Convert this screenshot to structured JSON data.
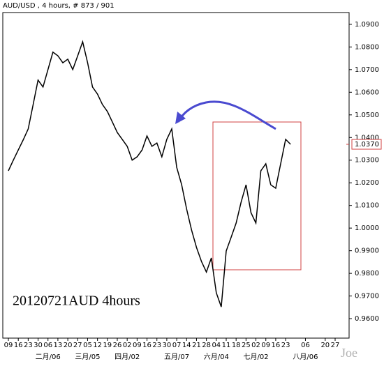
{
  "chart_data": {
    "type": "line",
    "title": "AUD/USD , 4 hours, # 873 / 901",
    "annotation": "20120721AUD 4hours",
    "watermark": "Joe",
    "color": "#000000",
    "categories": [
      "09",
      null,
      "16",
      null,
      "23",
      null,
      "30",
      null,
      "06",
      null,
      "13",
      null,
      "20",
      null,
      "27",
      null,
      "05",
      null,
      "12",
      null,
      "19",
      null,
      "26",
      null,
      "02",
      null,
      "09",
      null,
      "16",
      null,
      "23",
      null,
      "30",
      null,
      "07",
      null,
      "14",
      null,
      "21",
      null,
      "28",
      null,
      "04",
      null,
      "11",
      null,
      "18",
      null,
      "25",
      null,
      "02",
      null,
      "09",
      null,
      "16",
      null,
      "23",
      null,
      null,
      null,
      "06",
      null,
      null,
      null,
      "20",
      null,
      "27"
    ],
    "month_categories": [
      null,
      null,
      null,
      null,
      null,
      null,
      null,
      null,
      "二月/06",
      null,
      null,
      null,
      null,
      null,
      null,
      null,
      "三月/05",
      null,
      null,
      null,
      null,
      null,
      null,
      null,
      "四月/02",
      null,
      null,
      null,
      null,
      null,
      null,
      null,
      null,
      null,
      "五月/07",
      null,
      null,
      null,
      null,
      null,
      null,
      null,
      "六月/04",
      null,
      null,
      null,
      null,
      null,
      null,
      null,
      "七月/02",
      null,
      null,
      null,
      null,
      null,
      null,
      null,
      null,
      null,
      "八月/06",
      null,
      null,
      null,
      null,
      null,
      null
    ],
    "values": [
      1.0253,
      1.03,
      1.0345,
      1.039,
      1.0438,
      1.0546,
      1.0654,
      1.0623,
      1.07,
      1.0777,
      1.0761,
      1.073,
      1.0746,
      1.07,
      1.0761,
      1.0823,
      1.073,
      1.0623,
      1.0592,
      1.0546,
      1.0515,
      1.0469,
      1.0422,
      1.0392,
      1.0361,
      1.03,
      1.0315,
      1.0345,
      1.0407,
      1.0361,
      1.0376,
      1.0315,
      1.0392,
      1.0438,
      1.0268,
      1.0191,
      1.0084,
      0.9991,
      0.9914,
      0.9853,
      0.9806,
      0.9868,
      0.9714,
      0.9652,
      0.9899,
      0.996,
      1.0022,
      1.0114,
      1.0191,
      1.0068,
      1.0022,
      1.0253,
      1.0284,
      1.0191,
      1.0176,
      1.0284,
      1.0392,
      1.037,
      null,
      null,
      null,
      null,
      null,
      null,
      null,
      null,
      null
    ],
    "current_price": {
      "value": 1.037,
      "label": "1.0370"
    },
    "ylim": [
      0.9514,
      1.0952
    ],
    "yticks": [
      {
        "value": 0.96,
        "label": "0.9600"
      },
      {
        "value": 0.97,
        "label": "0.9700"
      },
      {
        "value": 0.98,
        "label": "0.9800"
      },
      {
        "value": 0.99,
        "label": "0.9900"
      },
      {
        "value": 1.0,
        "label": "1.0000"
      },
      {
        "value": 1.01,
        "label": "1.0100"
      },
      {
        "value": 1.02,
        "label": "1.0200"
      },
      {
        "value": 1.03,
        "label": "1.0300"
      },
      {
        "value": 1.04,
        "label": "1.0400"
      },
      {
        "value": 1.05,
        "label": "1.0500"
      },
      {
        "value": 1.06,
        "label": "1.0600"
      },
      {
        "value": 1.07,
        "label": "1.0700"
      },
      {
        "value": 1.08,
        "label": "1.0800"
      },
      {
        "value": 1.09,
        "label": "1.0900"
      }
    ]
  }
}
